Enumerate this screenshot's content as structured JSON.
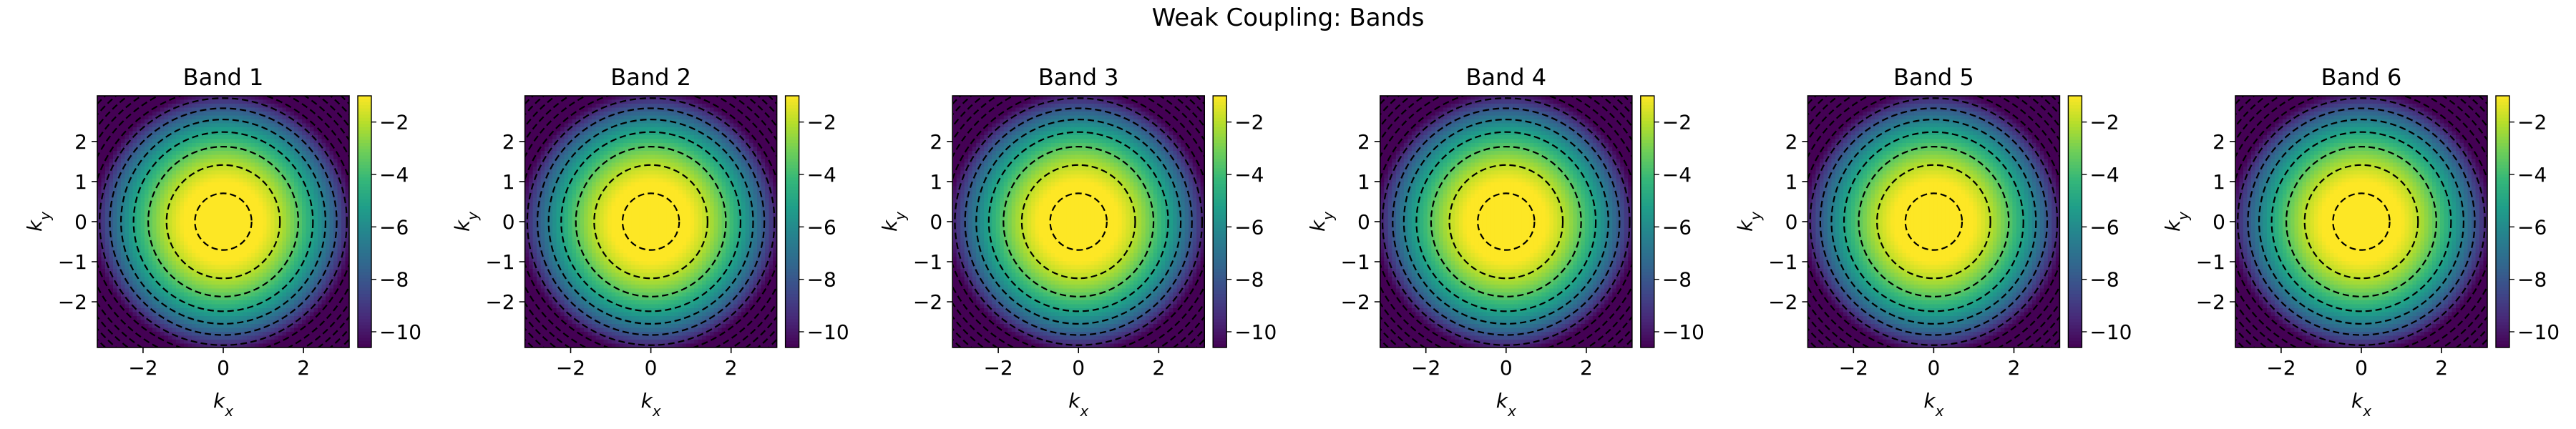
{
  "figure": {
    "title": "Weak Coupling: Bands"
  },
  "colormap": {
    "name": "viridis",
    "stops": [
      "#440154",
      "#482878",
      "#3e4989",
      "#31688e",
      "#26828e",
      "#1f9e89",
      "#35b779",
      "#6ece58",
      "#b5de2b",
      "#fde725"
    ]
  },
  "contour_color": "#000000",
  "chart_data": [
    {
      "type": "heatmap",
      "title": "Band 1",
      "xlabel": "k_x",
      "ylabel": "k_y",
      "xlim": [
        -3.14,
        3.14
      ],
      "ylim": [
        -3.14,
        3.14
      ],
      "xticks": [
        -2,
        0,
        2
      ],
      "yticks": [
        -2,
        -1,
        0,
        1,
        2
      ],
      "function": "E = -(kx^2 + ky^2)",
      "colorbar": {
        "range": [
          -10.6,
          -1.0
        ],
        "ticks": [
          -10,
          -8,
          -6,
          -4,
          -2
        ]
      },
      "contour_levels": [
        -0.5,
        -2,
        -3.5,
        -5,
        -6.5,
        -8,
        -9.5,
        -11,
        -12.5,
        -14,
        -15.5,
        -17,
        -18.5
      ],
      "contour_style": "dashed"
    },
    {
      "type": "heatmap",
      "title": "Band 2",
      "xlabel": "k_x",
      "ylabel": "k_y",
      "xlim": [
        -3.14,
        3.14
      ],
      "ylim": [
        -3.14,
        3.14
      ],
      "xticks": [
        -2,
        0,
        2
      ],
      "yticks": [
        -2,
        -1,
        0,
        1,
        2
      ],
      "function": "E = -(kx^2 + ky^2)",
      "colorbar": {
        "range": [
          -10.6,
          -1.0
        ],
        "ticks": [
          -10,
          -8,
          -6,
          -4,
          -2
        ]
      },
      "contour_levels": [
        -0.5,
        -2,
        -3.5,
        -5,
        -6.5,
        -8,
        -9.5,
        -11,
        -12.5,
        -14,
        -15.5,
        -17,
        -18.5
      ],
      "contour_style": "dashed"
    },
    {
      "type": "heatmap",
      "title": "Band 3",
      "xlabel": "k_x",
      "ylabel": "k_y",
      "xlim": [
        -3.14,
        3.14
      ],
      "ylim": [
        -3.14,
        3.14
      ],
      "xticks": [
        -2,
        0,
        2
      ],
      "yticks": [
        -2,
        -1,
        0,
        1,
        2
      ],
      "function": "E = -(kx^2 + ky^2)",
      "colorbar": {
        "range": [
          -10.6,
          -1.0
        ],
        "ticks": [
          -10,
          -8,
          -6,
          -4,
          -2
        ]
      },
      "contour_levels": [
        -0.5,
        -2,
        -3.5,
        -5,
        -6.5,
        -8,
        -9.5,
        -11,
        -12.5,
        -14,
        -15.5,
        -17,
        -18.5
      ],
      "contour_style": "dashed"
    },
    {
      "type": "heatmap",
      "title": "Band 4",
      "xlabel": "k_x",
      "ylabel": "k_y",
      "xlim": [
        -3.14,
        3.14
      ],
      "ylim": [
        -3.14,
        3.14
      ],
      "xticks": [
        -2,
        0,
        2
      ],
      "yticks": [
        -2,
        -1,
        0,
        1,
        2
      ],
      "function": "E = -(kx^2 + ky^2)",
      "colorbar": {
        "range": [
          -10.6,
          -1.0
        ],
        "ticks": [
          -10,
          -8,
          -6,
          -4,
          -2
        ]
      },
      "contour_levels": [
        -0.5,
        -2,
        -3.5,
        -5,
        -6.5,
        -8,
        -9.5,
        -11,
        -12.5,
        -14,
        -15.5,
        -17,
        -18.5
      ],
      "contour_style": "dashed"
    },
    {
      "type": "heatmap",
      "title": "Band 5",
      "xlabel": "k_x",
      "ylabel": "k_y",
      "xlim": [
        -3.14,
        3.14
      ],
      "ylim": [
        -3.14,
        3.14
      ],
      "xticks": [
        -2,
        0,
        2
      ],
      "yticks": [
        -2,
        -1,
        0,
        1,
        2
      ],
      "function": "E = -(kx^2 + ky^2)",
      "colorbar": {
        "range": [
          -10.6,
          -1.0
        ],
        "ticks": [
          -10,
          -8,
          -6,
          -4,
          -2
        ]
      },
      "contour_levels": [
        -0.5,
        -2,
        -3.5,
        -5,
        -6.5,
        -8,
        -9.5,
        -11,
        -12.5,
        -14,
        -15.5,
        -17,
        -18.5
      ],
      "contour_style": "dashed"
    },
    {
      "type": "heatmap",
      "title": "Band 6",
      "xlabel": "k_x",
      "ylabel": "k_y",
      "xlim": [
        -3.14,
        3.14
      ],
      "ylim": [
        -3.14,
        3.14
      ],
      "xticks": [
        -2,
        0,
        2
      ],
      "yticks": [
        -2,
        -1,
        0,
        1,
        2
      ],
      "function": "E = -(kx^2 + ky^2)",
      "colorbar": {
        "range": [
          -10.6,
          -1.0
        ],
        "ticks": [
          -10,
          -8,
          -6,
          -4,
          -2
        ]
      },
      "contour_levels": [
        -0.5,
        -2,
        -3.5,
        -5,
        -6.5,
        -8,
        -9.5,
        -11,
        -12.5,
        -14,
        -15.5,
        -17,
        -18.5
      ],
      "contour_style": "dashed"
    }
  ]
}
